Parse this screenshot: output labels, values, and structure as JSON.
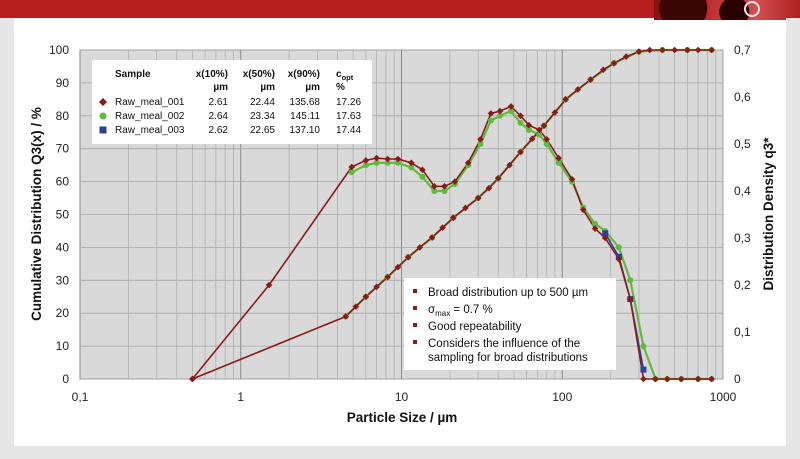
{
  "colors": {
    "topbar": "#b71f1f",
    "plot_background": "#d9d9d9",
    "series_001": "#8b1a1a",
    "series_002": "#5dbb3d",
    "series_003": "#2f3c9c"
  },
  "chart_data": {
    "type": "line",
    "x_scale": "log",
    "xlim": [
      0.1,
      1000
    ],
    "ylim_left": [
      0,
      100
    ],
    "ylim_right": [
      0,
      0.7
    ],
    "xlabel": "Particle Size / µm",
    "ylabel_left": "Cumulative Distribution Q3(x) / %",
    "ylabel_right": "Distribution Density q3*",
    "x_ticks": [
      "0,1",
      "1",
      "10",
      "100",
      "1000"
    ],
    "y_left_ticks": [
      "0",
      "10",
      "20",
      "30",
      "40",
      "50",
      "60",
      "70",
      "80",
      "90",
      "100"
    ],
    "y_right_ticks": [
      "0",
      "0,1",
      "0,2",
      "0,3",
      "0,4",
      "0,5",
      "0,6",
      "0,7"
    ],
    "grid": true,
    "series": [
      {
        "name": "Raw_meal_001",
        "marker": "diamond",
        "cumulative": {
          "x": [
            0.5,
            4.5,
            5.2,
            6,
            7,
            8.2,
            9.5,
            11,
            13,
            15.5,
            18,
            21,
            25,
            30,
            35,
            40,
            47,
            55,
            65,
            77,
            90,
            105,
            125,
            150,
            180,
            210,
            250,
            300,
            350,
            420,
            500,
            600,
            700,
            850
          ],
          "y": [
            0,
            19,
            22,
            25,
            28,
            31,
            34,
            37,
            40,
            43,
            46,
            49,
            52,
            55,
            58,
            61,
            65,
            69,
            73,
            77,
            81,
            85,
            88,
            91,
            94,
            96,
            98,
            99.5,
            100,
            100,
            100,
            100,
            100,
            100
          ]
        },
        "density": {
          "x": [
            0.5,
            1.5,
            4.9,
            6,
            7,
            8.2,
            9.5,
            11.5,
            13.5,
            16,
            18.5,
            21.5,
            26,
            31,
            36,
            41,
            48,
            55,
            62,
            72,
            80,
            95,
            115,
            135,
            160,
            185,
            225,
            265,
            320,
            380,
            450,
            550,
            700,
            850
          ],
          "y": [
            0,
            0.2,
            0.451,
            0.465,
            0.47,
            0.468,
            0.468,
            0.46,
            0.445,
            0.41,
            0.41,
            0.42,
            0.46,
            0.51,
            0.565,
            0.57,
            0.58,
            0.56,
            0.54,
            0.53,
            0.51,
            0.47,
            0.425,
            0.36,
            0.32,
            0.3,
            0.255,
            0.17,
            0.0,
            0.0,
            0.0,
            0.0,
            0.0,
            0.0
          ]
        }
      },
      {
        "name": "Raw_meal_002",
        "marker": "circle",
        "cumulative": {
          "x": [
            4.5,
            6,
            8.2,
            11,
            15.5,
            21,
            30,
            40,
            55,
            77,
            105,
            150,
            210,
            300,
            420,
            600,
            850
          ],
          "y": [
            19,
            25,
            31,
            37,
            43,
            49,
            55,
            61,
            69,
            77,
            85,
            91,
            96,
            99.5,
            100,
            100,
            100
          ]
        },
        "density": {
          "x": [
            4.9,
            6,
            7,
            8.2,
            9.5,
            11.5,
            13.5,
            16,
            18.5,
            21.5,
            26,
            31,
            36,
            41,
            48,
            55,
            62,
            72,
            80,
            95,
            115,
            135,
            160,
            185,
            225,
            265,
            320,
            380,
            450,
            550,
            700,
            850
          ],
          "y": [
            0.44,
            0.455,
            0.46,
            0.46,
            0.46,
            0.45,
            0.43,
            0.4,
            0.4,
            0.415,
            0.455,
            0.5,
            0.55,
            0.56,
            0.57,
            0.545,
            0.53,
            0.52,
            0.5,
            0.46,
            0.42,
            0.365,
            0.33,
            0.315,
            0.28,
            0.21,
            0.07,
            0.0,
            0.0,
            0.0,
            0.0,
            0.0
          ]
        }
      },
      {
        "name": "Raw_meal_003",
        "marker": "square",
        "density": {
          "x": [
            185,
            225,
            265,
            320
          ],
          "y": [
            0.31,
            0.26,
            0.17,
            0.02
          ]
        }
      }
    ]
  },
  "table": {
    "headers": [
      "Sample",
      "x(10%)",
      "x(50%)",
      "x(90%)",
      "c"
    ],
    "header_copt_sub": "opt",
    "units": [
      "µm",
      "µm",
      "µm",
      "%"
    ],
    "rows": [
      {
        "name": "Raw_meal_001",
        "x10": "2.61",
        "x50": "22.44",
        "x90": "135.68",
        "copt": "17.26"
      },
      {
        "name": "Raw_meal_002",
        "x10": "2.64",
        "x50": "23.34",
        "x90": "145.11",
        "copt": "17.63"
      },
      {
        "name": "Raw_meal_003",
        "x10": "2.62",
        "x50": "22.65",
        "x90": "137.10",
        "copt": "17.44"
      }
    ]
  },
  "notes": {
    "line1": "Broad distribution up to 500 µm",
    "line2_prefix": "σ",
    "line2_sub": "max",
    "line2_suffix": " = 0.7 %",
    "line3": "Good repeatability",
    "line4": "Considers the influence of the",
    "line5": "sampling for broad distributions"
  }
}
